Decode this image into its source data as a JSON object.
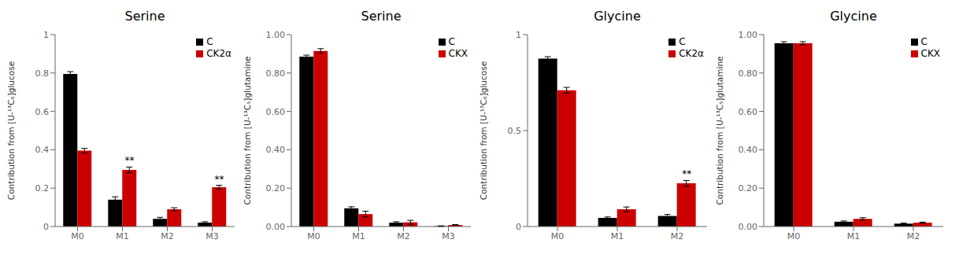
{
  "chart_data": [
    {
      "type": "bar",
      "title": "Serine",
      "y_label": "Contribution from [U-¹³C₆]glucose",
      "categories": [
        "M0",
        "M1",
        "M2",
        "M3"
      ],
      "series": [
        {
          "name": "C",
          "color": "#000000",
          "values": [
            0.795,
            0.14,
            0.04,
            0.02
          ],
          "errors": [
            0.012,
            0.015,
            0.008,
            0.005
          ]
        },
        {
          "name": "CK2α",
          "color": "#cc0000",
          "values": [
            0.395,
            0.295,
            0.09,
            0.205
          ],
          "errors": [
            0.012,
            0.015,
            0.008,
            0.01
          ]
        }
      ],
      "ylim": [
        0,
        1.0
      ],
      "yticks": [
        0,
        0.2,
        0.4,
        0.6,
        0.8,
        1
      ],
      "grid": false,
      "legend": "upper right",
      "annotations": [
        {
          "category": "M1",
          "series": "CK2α",
          "text": "**"
        },
        {
          "category": "M3",
          "series": "CK2α",
          "text": "**"
        }
      ]
    },
    {
      "type": "bar",
      "title": "Serine",
      "y_label": "Contribution from [U-¹³C₅]glutamine",
      "categories": [
        "M0",
        "M1",
        "M2",
        "M3"
      ],
      "series": [
        {
          "name": "C",
          "color": "#000000",
          "values": [
            0.885,
            0.095,
            0.02,
            0.002
          ],
          "errors": [
            0.008,
            0.008,
            0.005,
            0.002
          ]
        },
        {
          "name": "CKX",
          "color": "#cc0000",
          "values": [
            0.915,
            0.065,
            0.022,
            0.008
          ],
          "errors": [
            0.012,
            0.015,
            0.01,
            0.002
          ]
        }
      ],
      "ylim": [
        0,
        1.0
      ],
      "yticks": [
        {
          "value": 0,
          "label": "0.00"
        },
        {
          "value": 0.2,
          "label": "0.20"
        },
        {
          "value": 0.4,
          "label": "0.40"
        },
        {
          "value": 0.6,
          "label": "0.60"
        },
        {
          "value": 0.8,
          "label": "0.80"
        },
        {
          "value": 1,
          "label": "1.00"
        }
      ],
      "grid": false,
      "legend": "upper right",
      "annotations": []
    },
    {
      "type": "bar",
      "title": "Glycine",
      "y_label": "Contribution from [U-¹³C₆]glucose",
      "categories": [
        "M0",
        "M1",
        "M2"
      ],
      "series": [
        {
          "name": "C",
          "color": "#000000",
          "values": [
            0.875,
            0.045,
            0.055
          ],
          "errors": [
            0.01,
            0.005,
            0.008
          ]
        },
        {
          "name": "CK2α",
          "color": "#cc0000",
          "values": [
            0.71,
            0.09,
            0.225
          ],
          "errors": [
            0.015,
            0.012,
            0.015
          ]
        }
      ],
      "ylim": [
        0,
        1.0
      ],
      "yticks": [
        0,
        0.5,
        1
      ],
      "grid": false,
      "legend": "upper right",
      "annotations": [
        {
          "category": "M2",
          "series": "CK2α",
          "text": "**"
        }
      ]
    },
    {
      "type": "bar",
      "title": "Glycine",
      "y_label": "Contribution from [U-¹³C₅]glutamine",
      "categories": [
        "M0",
        "M1",
        "M2"
      ],
      "series": [
        {
          "name": "C",
          "color": "#000000",
          "values": [
            0.955,
            0.025,
            0.015
          ],
          "errors": [
            0.008,
            0.004,
            0.003
          ]
        },
        {
          "name": "CKX",
          "color": "#cc0000",
          "values": [
            0.955,
            0.04,
            0.02
          ],
          "errors": [
            0.008,
            0.006,
            0.003
          ]
        }
      ],
      "ylim": [
        0,
        1.0
      ],
      "yticks": [
        {
          "value": 0,
          "label": "0.00"
        },
        {
          "value": 0.2,
          "label": "0.20"
        },
        {
          "value": 0.4,
          "label": "0.40"
        },
        {
          "value": 0.6,
          "label": "0.60"
        },
        {
          "value": 0.8,
          "label": "0.80"
        },
        {
          "value": 1,
          "label": "1.00"
        }
      ],
      "grid": false,
      "legend": "upper right",
      "annotations": []
    }
  ]
}
